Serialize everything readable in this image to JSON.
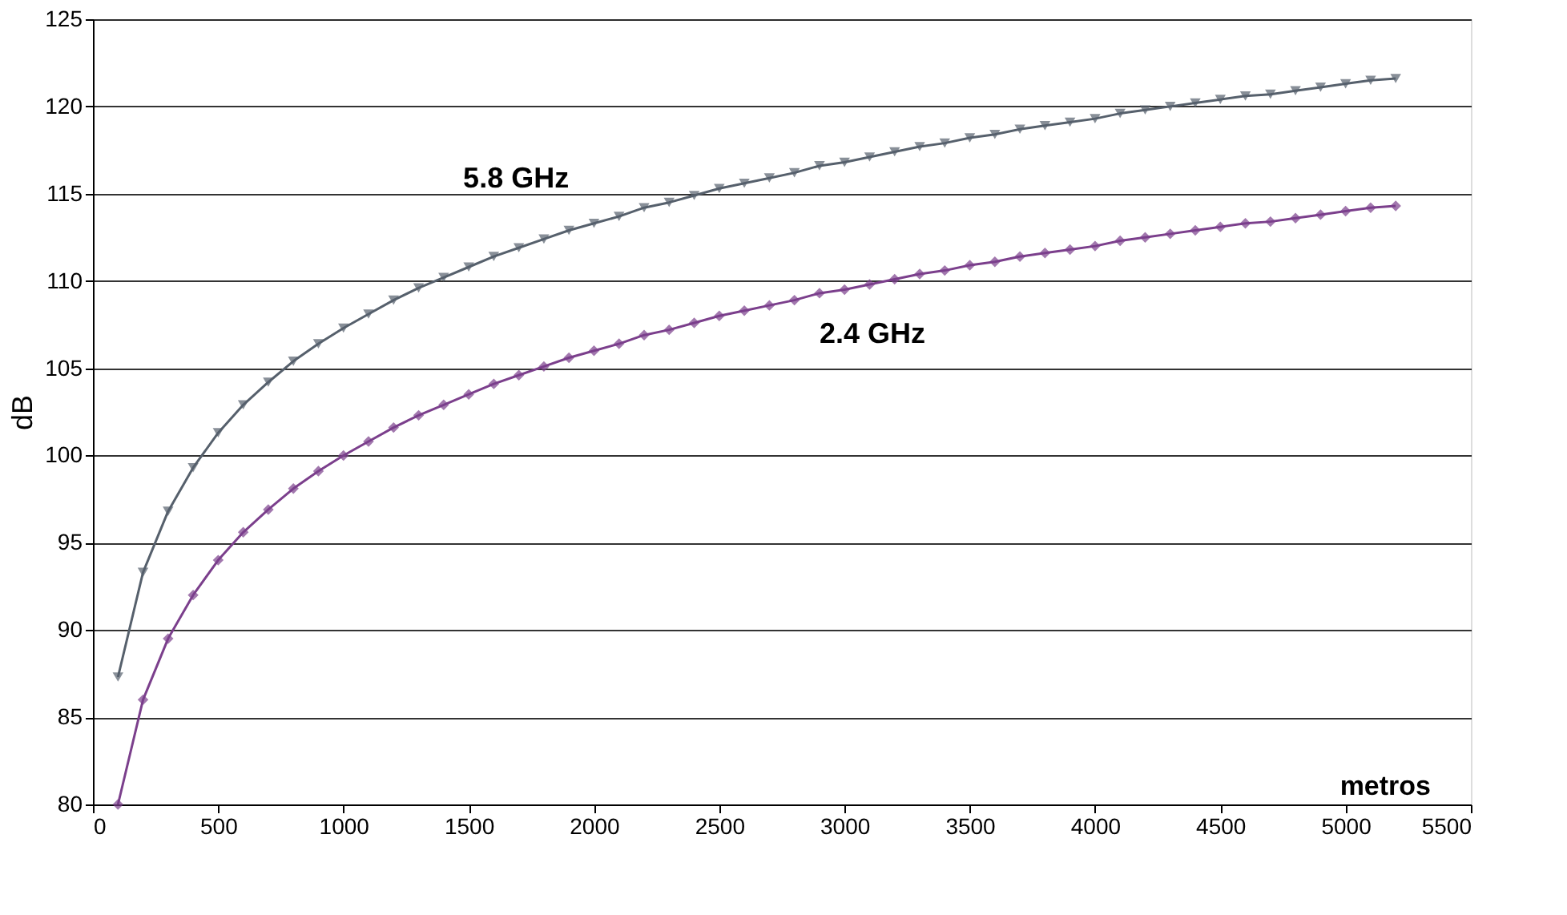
{
  "chart_data": {
    "type": "line",
    "xlabel": "metros",
    "ylabel": "dB",
    "x": [
      100,
      200,
      300,
      400,
      500,
      600,
      700,
      800,
      900,
      1000,
      1100,
      1200,
      1300,
      1400,
      1500,
      1600,
      1700,
      1800,
      1900,
      2000,
      2100,
      2200,
      2300,
      2400,
      2500,
      2600,
      2700,
      2800,
      2900,
      3000,
      3100,
      3200,
      3300,
      3400,
      3500,
      3600,
      3700,
      3800,
      3900,
      4000,
      4100,
      4200,
      4300,
      4400,
      4500,
      4600,
      4700,
      4800,
      4900,
      5000,
      5100,
      5200
    ],
    "series": [
      {
        "name": "5.8 GHz",
        "color": "#56606c",
        "marker": "triangle",
        "values": [
          87.3,
          93.3,
          96.8,
          99.3,
          101.3,
          102.9,
          104.2,
          105.4,
          106.4,
          107.3,
          108.1,
          108.9,
          109.6,
          110.2,
          110.8,
          111.4,
          111.9,
          112.4,
          112.9,
          113.3,
          113.7,
          114.2,
          114.5,
          114.9,
          115.3,
          115.6,
          115.9,
          116.2,
          116.6,
          116.8,
          117.1,
          117.4,
          117.7,
          117.9,
          118.2,
          118.4,
          118.7,
          118.9,
          119.1,
          119.3,
          119.6,
          119.8,
          120.0,
          120.2,
          120.4,
          120.6,
          120.7,
          120.9,
          121.1,
          121.3,
          121.5,
          121.6
        ]
      },
      {
        "name": "2.4 GHz",
        "color": "#7b3f8c",
        "marker": "diamond",
        "values": [
          80.0,
          86.0,
          89.5,
          92.0,
          94.0,
          95.6,
          96.9,
          98.1,
          99.1,
          100.0,
          100.8,
          101.6,
          102.3,
          102.9,
          103.5,
          104.1,
          104.6,
          105.1,
          105.6,
          106.0,
          106.4,
          106.9,
          107.2,
          107.6,
          108.0,
          108.3,
          108.6,
          108.9,
          109.3,
          109.5,
          109.8,
          110.1,
          110.4,
          110.6,
          110.9,
          111.1,
          111.4,
          111.6,
          111.8,
          112.0,
          112.3,
          112.5,
          112.7,
          112.9,
          113.1,
          113.3,
          113.4,
          113.6,
          113.8,
          114.0,
          114.2,
          114.3
        ]
      }
    ],
    "xlim": [
      0,
      5500
    ],
    "xticks": [
      0,
      500,
      1000,
      1500,
      2000,
      2500,
      3000,
      3500,
      4000,
      4500,
      5000,
      5500
    ],
    "ylim": [
      80,
      125
    ],
    "yticks": [
      80,
      85,
      90,
      95,
      100,
      105,
      110,
      115,
      120,
      125
    ],
    "grid": "y"
  }
}
